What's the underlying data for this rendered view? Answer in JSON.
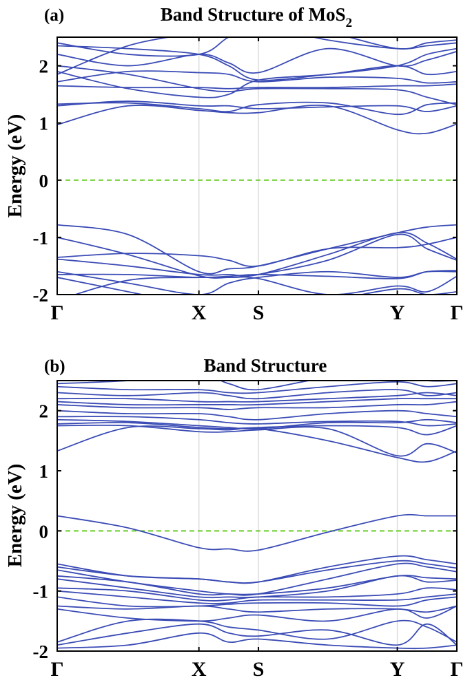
{
  "colors": {
    "band": "#3a4bb5",
    "fermi": "#66cc22",
    "kline": "#dddddd",
    "axis": "#000000"
  },
  "chart_data": [
    {
      "type": "line",
      "panel_label": "(a)",
      "title": "Band Structure of MoS",
      "title_subscript": "2",
      "ylabel": "Energy (eV)",
      "ylim": [
        -2,
        2.5
      ],
      "yticks": [
        -2,
        -1,
        0,
        1,
        2
      ],
      "xticks": [
        {
          "label": "Γ",
          "k": 0
        },
        {
          "label": "X",
          "k": 1
        },
        {
          "label": "S",
          "k": 1.42
        },
        {
          "label": "Y",
          "k": 2.4
        },
        {
          "label": "Γ",
          "k": 2.82
        }
      ],
      "fermi_level": 0,
      "k": [
        0,
        0.5,
        1,
        1.21,
        1.42,
        1.91,
        2.4,
        2.61,
        2.82
      ],
      "bands": [
        [
          0.97,
          1.3,
          1.22,
          1.18,
          1.18,
          1.3,
          0.88,
          0.82,
          0.98
        ],
        [
          1.3,
          1.38,
          1.3,
          1.3,
          1.25,
          1.28,
          1.3,
          1.2,
          1.3
        ],
        [
          1.33,
          1.35,
          1.25,
          1.2,
          1.32,
          1.35,
          1.15,
          1.32,
          1.35
        ],
        [
          1.65,
          1.62,
          1.62,
          1.6,
          1.62,
          1.62,
          1.65,
          1.65,
          1.68
        ],
        [
          1.72,
          1.9,
          1.88,
          1.85,
          1.72,
          1.8,
          1.78,
          1.7,
          1.72
        ],
        [
          1.9,
          1.6,
          1.45,
          1.5,
          1.75,
          1.85,
          2.0,
          1.85,
          1.9
        ],
        [
          2.0,
          1.85,
          1.6,
          1.55,
          1.6,
          1.6,
          1.58,
          1.45,
          1.32
        ],
        [
          2.2,
          2.0,
          2.2,
          2.05,
          1.88,
          2.3,
          2.0,
          2.1,
          2.25
        ],
        [
          2.35,
          2.3,
          2.2,
          2.0,
          1.75,
          1.85,
          2.0,
          2.2,
          2.3
        ],
        [
          2.4,
          2.2,
          2.2,
          2.5,
          2.7,
          2.45,
          2.3,
          2.35,
          2.4
        ],
        [
          1.85,
          2.35,
          2.6,
          2.8,
          2.9,
          2.6,
          2.3,
          2.4,
          2.45
        ],
        [
          -0.78,
          -0.95,
          -1.6,
          -1.55,
          -1.5,
          -1.2,
          -0.92,
          -0.82,
          -0.78
        ],
        [
          -1.0,
          -1.3,
          -1.67,
          -1.7,
          -1.65,
          -1.4,
          -0.95,
          -1.2,
          -1.4
        ],
        [
          -1.35,
          -1.28,
          -1.32,
          -1.4,
          -1.5,
          -1.2,
          -1.18,
          -1.12,
          -1.0
        ],
        [
          -1.38,
          -1.5,
          -1.65,
          -1.65,
          -1.65,
          -1.3,
          -0.92,
          -1.1,
          -1.38
        ],
        [
          -1.6,
          -1.8,
          -2.0,
          -1.8,
          -1.7,
          -1.6,
          -1.7,
          -1.6,
          -1.6
        ],
        [
          -1.65,
          -1.65,
          -1.7,
          -1.68,
          -1.65,
          -1.68,
          -1.72,
          -1.6,
          -1.58
        ],
        [
          -1.7,
          -1.95,
          -2.2,
          -2.3,
          -2.2,
          -2.1,
          -1.9,
          -2.0,
          -1.95
        ],
        [
          -2.1,
          -1.75,
          -1.7,
          -1.7,
          -1.72,
          -2.0,
          -1.85,
          -1.95,
          -1.68
        ]
      ]
    },
    {
      "type": "line",
      "panel_label": "(b)",
      "title": "Band Structure",
      "title_subscript": "",
      "ylabel": "Energy (eV)",
      "ylim": [
        -2,
        2.5
      ],
      "yticks": [
        -2,
        -1,
        0,
        1,
        2
      ],
      "xticks": [
        {
          "label": "Γ",
          "k": 0
        },
        {
          "label": "X",
          "k": 1
        },
        {
          "label": "S",
          "k": 1.42
        },
        {
          "label": "Y",
          "k": 2.4
        },
        {
          "label": "Γ",
          "k": 2.82
        }
      ],
      "fermi_level": 0,
      "k": [
        0,
        0.5,
        1,
        1.21,
        1.42,
        1.91,
        2.4,
        2.61,
        2.82
      ],
      "bands": [
        [
          0.25,
          0.05,
          -0.28,
          -0.3,
          -0.32,
          -0.02,
          0.25,
          0.25,
          0.25
        ],
        [
          1.33,
          1.72,
          1.7,
          1.68,
          1.7,
          1.5,
          1.22,
          1.15,
          1.33
        ],
        [
          1.75,
          1.75,
          1.65,
          1.65,
          1.68,
          1.7,
          1.25,
          1.45,
          1.3
        ],
        [
          1.78,
          1.8,
          1.72,
          1.7,
          1.72,
          1.75,
          1.72,
          1.6,
          1.75
        ],
        [
          1.85,
          1.82,
          1.75,
          1.72,
          1.7,
          1.8,
          1.8,
          1.85,
          1.8
        ],
        [
          1.9,
          1.9,
          1.85,
          1.8,
          1.78,
          1.82,
          1.82,
          1.75,
          1.78
        ],
        [
          2.0,
          1.95,
          1.95,
          1.9,
          1.85,
          1.95,
          2.0,
          1.95,
          1.9
        ],
        [
          2.1,
          2.05,
          2.05,
          2.02,
          2.05,
          2.05,
          2.1,
          2.1,
          2.15
        ],
        [
          2.15,
          2.1,
          2.1,
          2.1,
          2.1,
          2.15,
          2.2,
          2.2,
          2.2
        ],
        [
          2.2,
          2.2,
          2.15,
          2.15,
          2.15,
          2.2,
          2.25,
          2.3,
          2.25
        ],
        [
          2.3,
          2.25,
          2.3,
          2.25,
          2.2,
          2.3,
          2.35,
          2.25,
          2.3
        ],
        [
          2.4,
          2.35,
          2.35,
          2.3,
          2.3,
          2.4,
          2.48,
          2.4,
          2.45
        ],
        [
          2.45,
          2.5,
          2.6,
          2.45,
          2.35,
          2.55,
          2.6,
          2.5,
          2.5
        ],
        [
          -0.55,
          -0.75,
          -0.8,
          -0.85,
          -0.85,
          -0.6,
          -0.42,
          -0.48,
          -0.55
        ],
        [
          -0.6,
          -0.75,
          -0.8,
          -0.85,
          -0.85,
          -0.65,
          -0.5,
          -0.55,
          -0.62
        ],
        [
          -0.65,
          -0.85,
          -1.0,
          -1.05,
          -1.05,
          -0.8,
          -0.55,
          -0.6,
          -0.68
        ],
        [
          -0.75,
          -0.85,
          -1.05,
          -1.05,
          -1.05,
          -0.95,
          -0.75,
          -0.78,
          -0.8
        ],
        [
          -0.8,
          -0.95,
          -1.1,
          -1.1,
          -1.1,
          -1.0,
          -0.75,
          -0.85,
          -0.82
        ],
        [
          -0.95,
          -1.0,
          -1.15,
          -1.15,
          -1.1,
          -1.1,
          -1.05,
          -0.95,
          -0.98
        ],
        [
          -1.0,
          -1.1,
          -1.2,
          -1.2,
          -1.15,
          -1.15,
          -1.15,
          -1.1,
          -1.05
        ],
        [
          -1.1,
          -1.25,
          -1.25,
          -1.22,
          -1.2,
          -1.2,
          -1.25,
          -1.15,
          -1.1
        ],
        [
          -1.25,
          -1.3,
          -1.25,
          -1.3,
          -1.35,
          -1.3,
          -1.3,
          -1.35,
          -1.25
        ],
        [
          -1.3,
          -1.45,
          -1.5,
          -1.45,
          -1.4,
          -1.5,
          -1.3,
          -1.45,
          -1.25
        ],
        [
          -1.85,
          -1.5,
          -1.5,
          -1.6,
          -1.65,
          -1.8,
          -1.5,
          -1.6,
          -1.85
        ],
        [
          -1.9,
          -1.7,
          -1.55,
          -1.7,
          -1.75,
          -1.65,
          -1.9,
          -1.55,
          -1.9
        ],
        [
          -1.95,
          -1.9,
          -1.7,
          -1.85,
          -1.8,
          -1.9,
          -1.95,
          -1.95,
          -1.9
        ]
      ]
    }
  ]
}
